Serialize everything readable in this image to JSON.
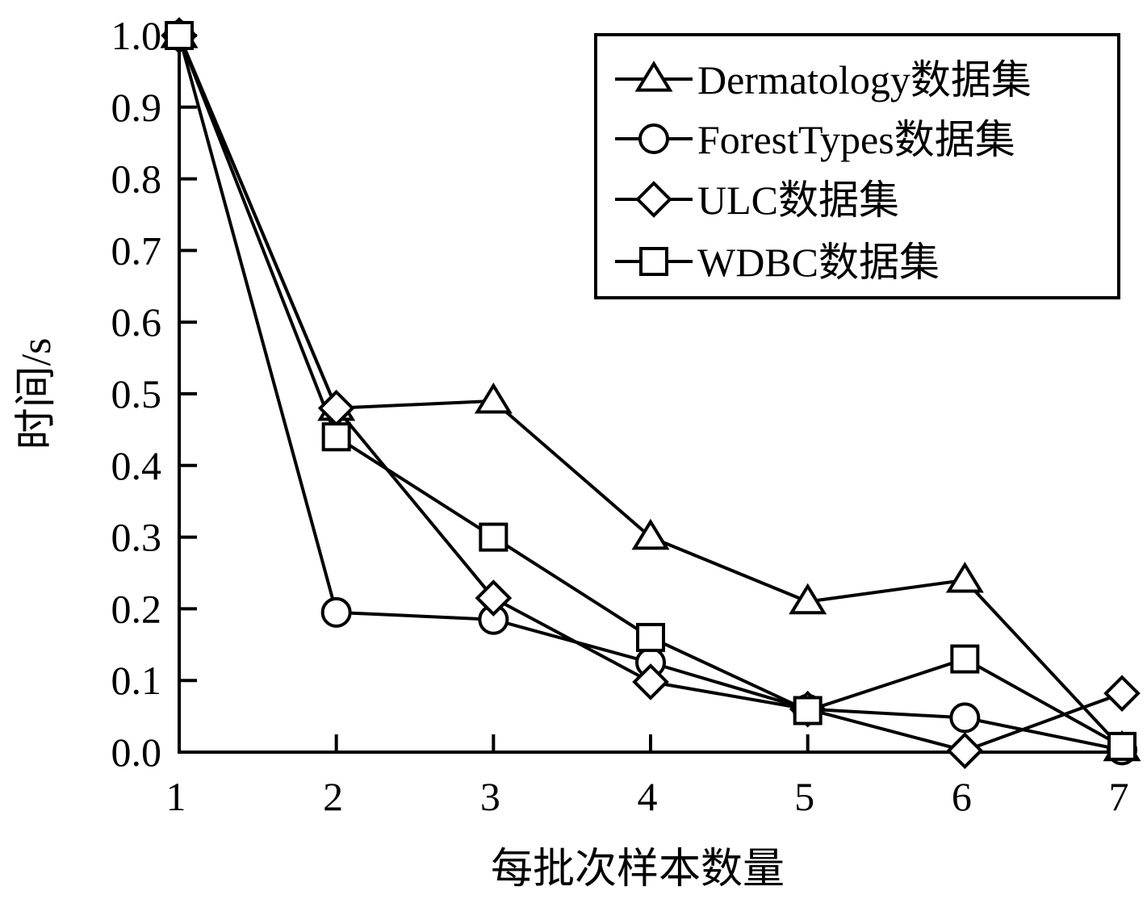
{
  "chart_data": {
    "type": "line",
    "xlabel": "每批次样本数量",
    "ylabel": "时间/s",
    "x": [
      1,
      2,
      3,
      4,
      5,
      6,
      7
    ],
    "xlim": [
      1,
      7
    ],
    "ylim": [
      0.0,
      1.0
    ],
    "x_ticks": [
      "1",
      "2",
      "3",
      "4",
      "5",
      "6",
      "7"
    ],
    "y_ticks": [
      "0.0",
      "0.1",
      "0.2",
      "0.3",
      "0.4",
      "0.5",
      "0.6",
      "0.7",
      "0.8",
      "0.9",
      "1.0"
    ],
    "grid": false,
    "legend_position": "top-right",
    "series": [
      {
        "name": "Dermatology数据集",
        "marker": "triangle",
        "values": [
          1.0,
          0.48,
          0.49,
          0.3,
          0.21,
          0.24,
          0.005
        ]
      },
      {
        "name": "ForestTypes数据集",
        "marker": "circle",
        "values": [
          1.0,
          0.195,
          0.185,
          0.125,
          0.06,
          0.048,
          0.003
        ]
      },
      {
        "name": "ULC数据集",
        "marker": "diamond",
        "values": [
          1.0,
          0.48,
          0.215,
          0.098,
          0.06,
          0.002,
          0.082
        ]
      },
      {
        "name": "WDBC数据集",
        "marker": "square",
        "values": [
          1.0,
          0.44,
          0.3,
          0.16,
          0.058,
          0.13,
          0.008
        ]
      }
    ]
  }
}
